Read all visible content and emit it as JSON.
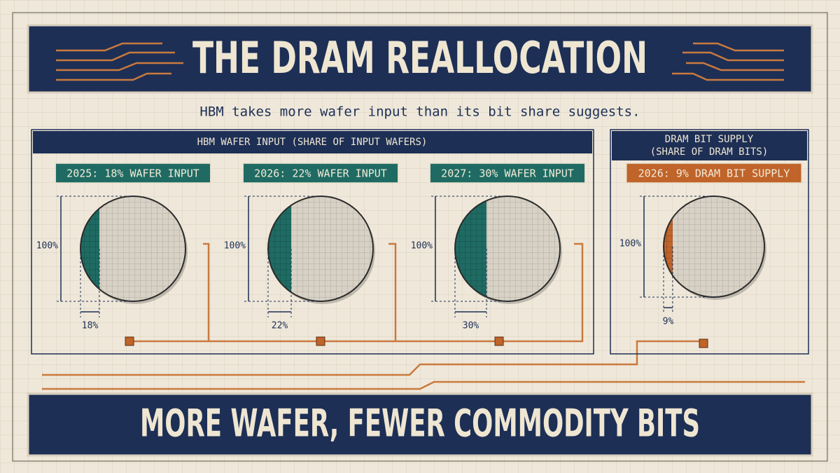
{
  "header": {
    "title": "THE DRAM REALLOCATION",
    "subtitle": "HBM takes more wafer input than its bit share suggests."
  },
  "panels": [
    {
      "title_lines": [
        "HBM WAFER INPUT (SHARE OF INPUT WAFERS)"
      ],
      "color": "#1f6b63",
      "wafers": [
        {
          "label": "2025: 18% WAFER INPUT",
          "full": {
            "value": 100,
            "label": "100%"
          },
          "share": {
            "value": 18,
            "label": "18%"
          }
        },
        {
          "label": "2026: 22% WAFER INPUT",
          "full": {
            "value": 100,
            "label": "100%"
          },
          "share": {
            "value": 22,
            "label": "22%"
          }
        },
        {
          "label": "2027: 30% WAFER INPUT",
          "full": {
            "value": 100,
            "label": "100%"
          },
          "share": {
            "value": 30,
            "label": "30%"
          }
        }
      ]
    },
    {
      "title_lines": [
        "DRAM BIT SUPPLY",
        "(SHARE OF DRAM BITS)"
      ],
      "color": "#c0642a",
      "wafers": [
        {
          "label": "2026: 9% DRAM BIT SUPPLY",
          "full": {
            "value": 100,
            "label": "100%"
          },
          "share": {
            "value": 9,
            "label": "9%"
          }
        }
      ]
    }
  ],
  "footer": {
    "title": "MORE WAFER, FEWER COMMODITY BITS"
  }
}
